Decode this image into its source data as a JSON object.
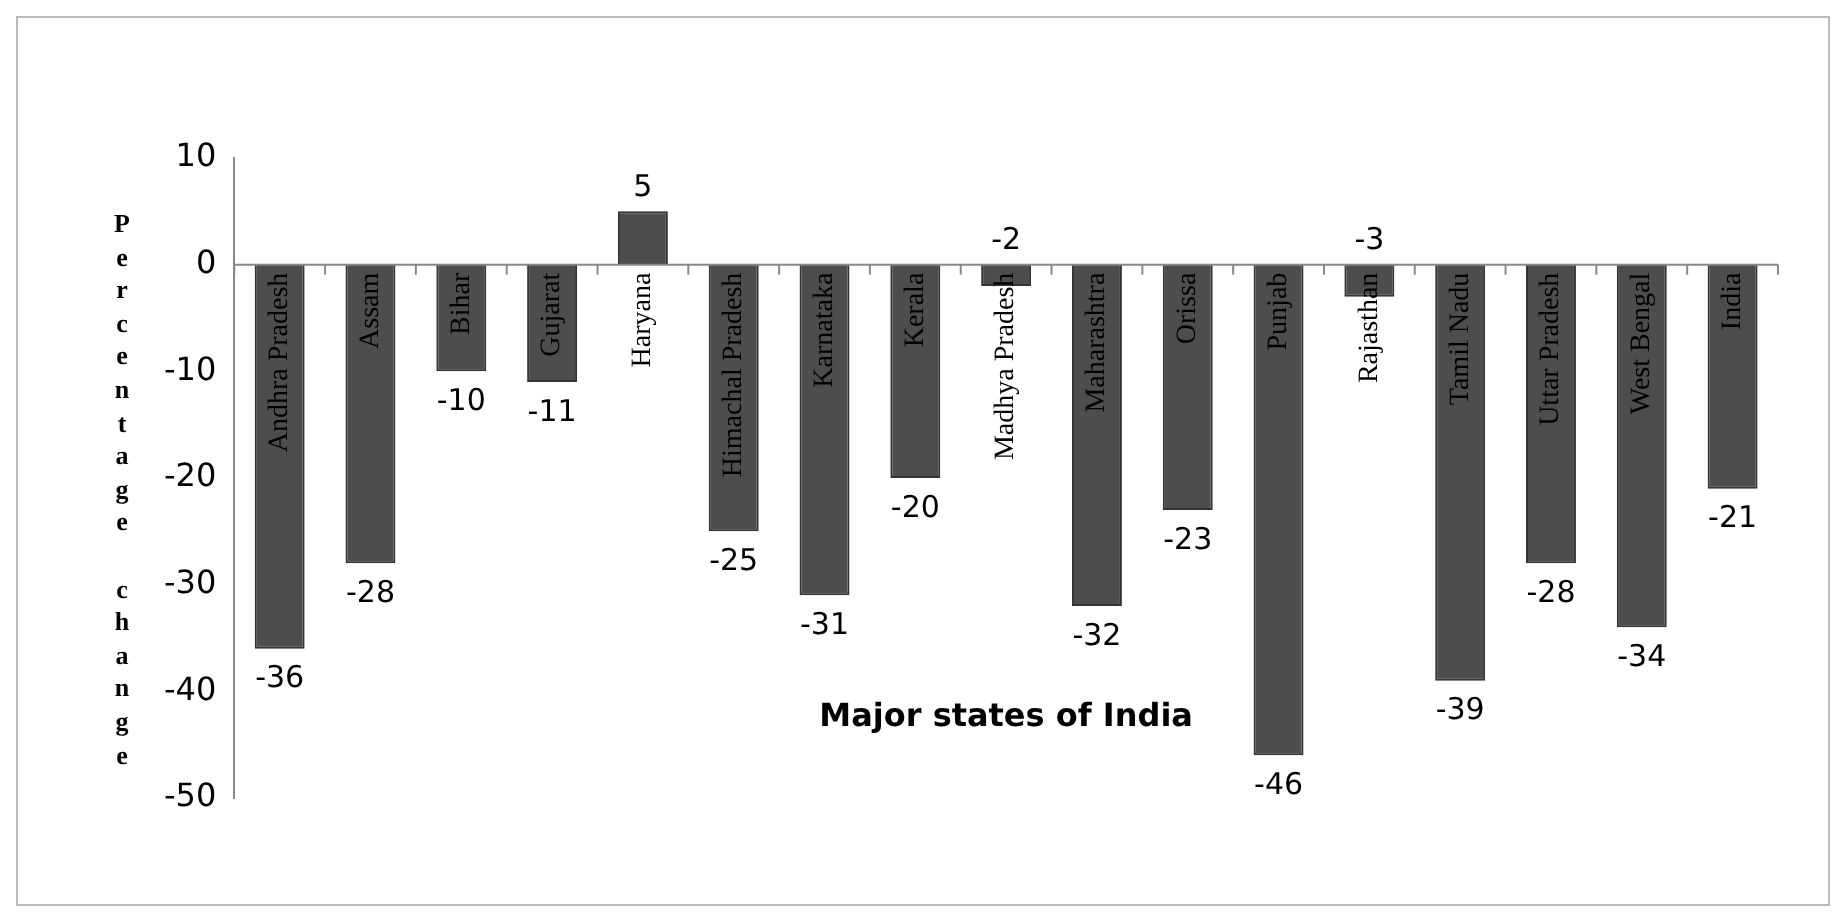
{
  "chart_data": {
    "type": "bar",
    "xlabel": "Major states of India",
    "ylabel": "Percentage change",
    "categories": [
      "Andhra Pradesh",
      "Assam",
      "Bihar",
      "Gujarat",
      "Haryana",
      "Himachal Pradesh",
      "Karnataka",
      "Kerala",
      "Madhya Pradesh",
      "Maharashtra",
      "Orissa",
      "Punjab",
      "Rajasthan",
      "Tamil Nadu",
      "Uttar Pradesh",
      "West Bengal",
      "India"
    ],
    "values": [
      -36,
      -28,
      -10,
      -11,
      5,
      -25,
      -31,
      -20,
      -2,
      -32,
      -23,
      -46,
      -3,
      -39,
      -28,
      -34,
      -21
    ],
    "color": "#4d4d4d",
    "ylim": [
      -50,
      10
    ],
    "yticks": [
      -50,
      -40,
      -30,
      -20,
      -10,
      0,
      10
    ],
    "grid": false,
    "legend": false,
    "data_labels": true
  }
}
